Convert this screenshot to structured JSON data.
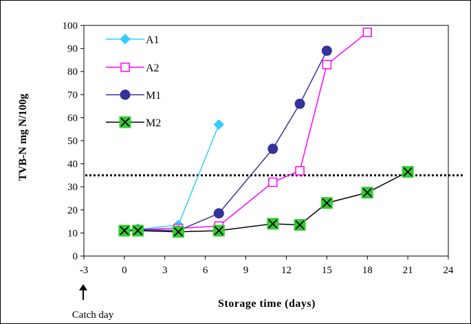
{
  "chart_data": {
    "type": "line",
    "xlabel": "Storage time (days)",
    "ylabel": "TVB-N mg N/100g",
    "xlim": [
      -3,
      24
    ],
    "ylim": [
      0,
      100
    ],
    "xticks": [
      "-3",
      "0",
      "3",
      "6",
      "9",
      "12",
      "15",
      "18",
      "21",
      "24"
    ],
    "yticks": [
      "0",
      "10",
      "20",
      "30",
      "40",
      "50",
      "60",
      "70",
      "80",
      "90",
      "100"
    ],
    "reference_line": {
      "y": 35,
      "style": "dotted"
    },
    "annotation": {
      "text": "Catch day",
      "x": -3
    },
    "legend_position": "top-left",
    "series": [
      {
        "name": "A1",
        "color": "#33CCFF",
        "marker": "diamond",
        "x": [
          0,
          1,
          4,
          7
        ],
        "y": [
          11,
          11.5,
          13.5,
          57
        ]
      },
      {
        "name": "A2",
        "color": "#FF00FF",
        "marker": "open-square",
        "x": [
          0,
          1,
          4,
          7,
          11,
          13,
          15,
          18
        ],
        "y": [
          11,
          11.5,
          12,
          13,
          32,
          37,
          83,
          97
        ]
      },
      {
        "name": "M1",
        "color": "#333399",
        "marker": "circle",
        "x": [
          0,
          1,
          4,
          7,
          11,
          13,
          15
        ],
        "y": [
          11,
          11.5,
          11,
          18.5,
          46.5,
          66,
          89
        ]
      },
      {
        "name": "M2",
        "color": "#000000",
        "marker": "green-box-x",
        "x": [
          0,
          1,
          4,
          7,
          11,
          13,
          15,
          18,
          21
        ],
        "y": [
          11,
          11,
          10.5,
          11,
          14,
          13.5,
          23,
          27.5,
          36.5
        ]
      }
    ]
  }
}
